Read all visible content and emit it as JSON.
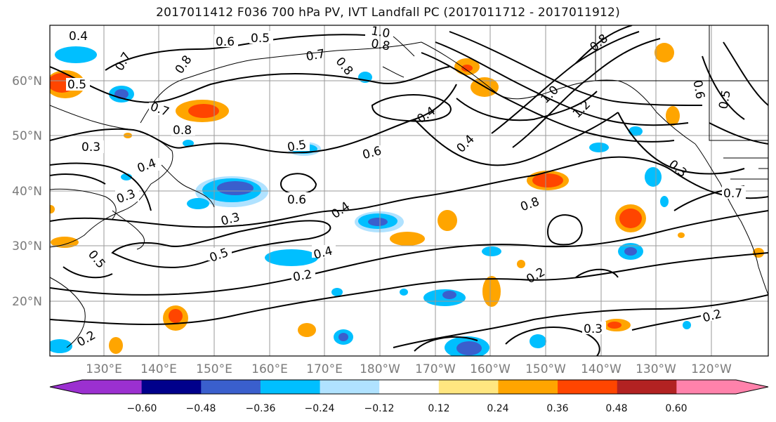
{
  "title": "2017011412 F036 700 hPa PV, IVT Landfall PC (2017011712 - 2017011912)",
  "lat_labels": [
    "60°N",
    "50°N",
    "40°N",
    "30°N",
    "20°N"
  ],
  "lon_labels": [
    "130°E",
    "140°E",
    "150°E",
    "160°E",
    "170°E",
    "180°W",
    "170°W",
    "160°W",
    "150°W",
    "140°W",
    "130°W",
    "120°W"
  ],
  "contour_labels": [
    "0.4",
    "0.7",
    "0.6",
    "0.5",
    "1.0",
    "0.8",
    "0.5",
    "0.8",
    "0.7",
    "0.8",
    "0.7",
    "0.8",
    "0.3",
    "0.4",
    "0.5",
    "0.6",
    "0.3",
    "0.4",
    "0.6",
    "0.4",
    "0.4",
    "0.3",
    "0.5",
    "0.5",
    "0.4",
    "0.2",
    "0.2",
    "0.3",
    "0.2",
    "0.2",
    "1.0",
    "1.2",
    "0.8",
    "0.8",
    "0.3",
    "0.7",
    "0.5",
    "0.6"
  ],
  "colorbar": {
    "ticks": [
      "−0.60",
      "−0.48",
      "−0.36",
      "−0.24",
      "−0.12",
      "0.12",
      "0.24",
      "0.36",
      "0.48",
      "0.60"
    ],
    "colors": [
      "#9b30d0",
      "#00008b",
      "#3a5fcd",
      "#00bfff",
      "#b0e2ff",
      "#ffffff",
      "#ffe680",
      "#ffa500",
      "#ff4500",
      "#b22222",
      "#ff82ab"
    ]
  },
  "colors": {
    "neg_strong": "#3a5fcd",
    "neg_mid": "#00bfff",
    "neg_weak": "#b0e2ff",
    "pos_weak": "#ffe680",
    "pos_mid": "#ffa500",
    "pos_strong": "#ff4500"
  }
}
